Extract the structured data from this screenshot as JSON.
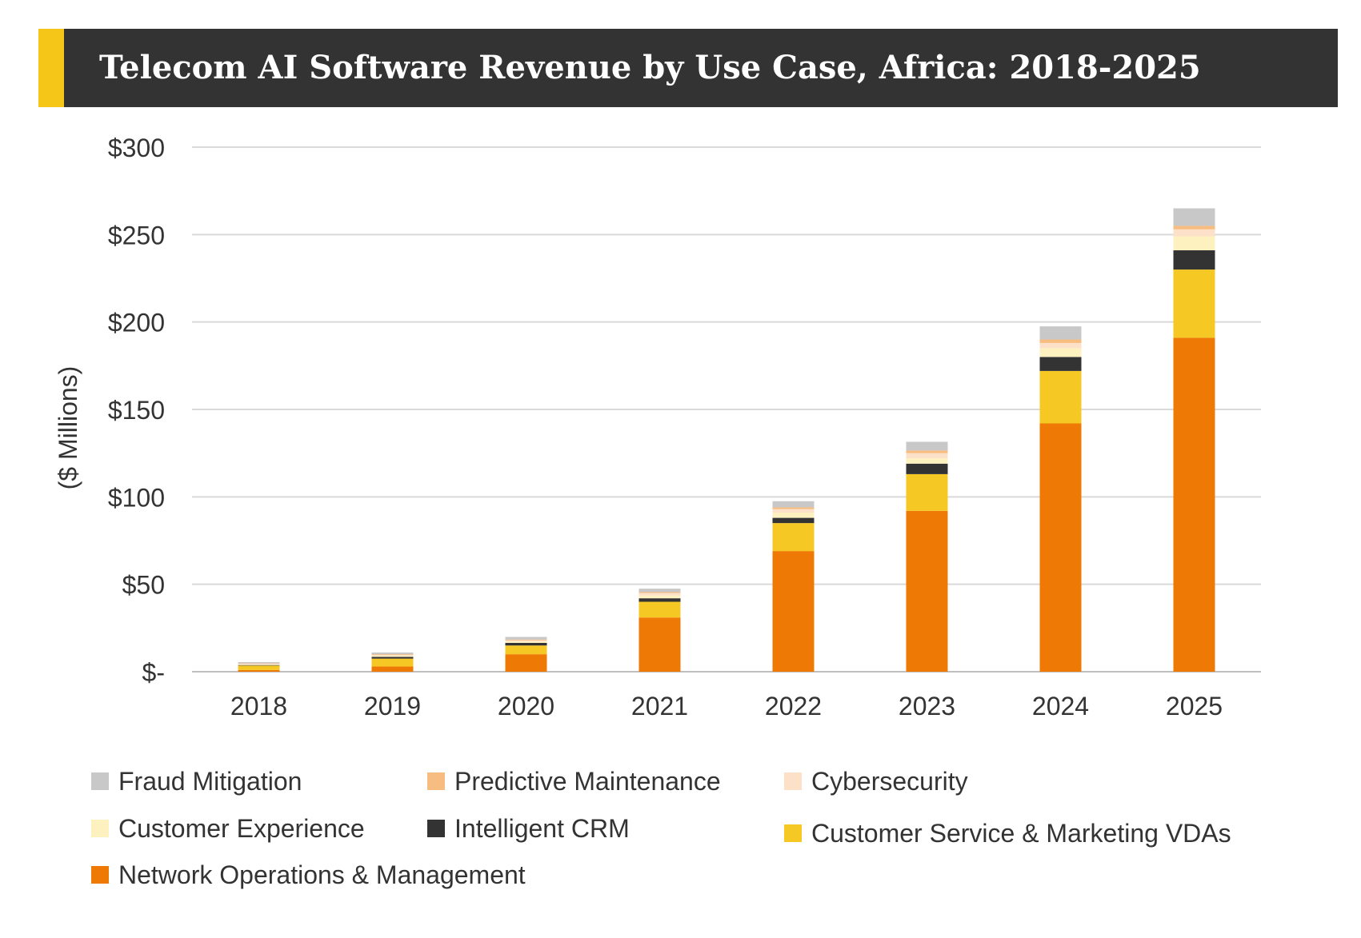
{
  "title": "Telecom AI Software Revenue by Use Case, Africa: 2018-2025",
  "colors": {
    "title_bg": "#333333",
    "title_accent": "#f5c518",
    "title_text": "#ffffff"
  },
  "chart_data": {
    "type": "bar",
    "stacked": true,
    "title": "Telecom AI Software Revenue by Use Case, Africa: 2018-2025",
    "ylabel": "($ Millions)",
    "xlabel": "",
    "ylim": [
      0,
      300
    ],
    "y_ticks": [
      0,
      50,
      100,
      150,
      200,
      250,
      300
    ],
    "y_tick_labels": [
      "$-",
      "$50",
      "$100",
      "$150",
      "$200",
      "$250",
      "$300"
    ],
    "grid": true,
    "legend_position": "bottom",
    "categories": [
      "2018",
      "2019",
      "2020",
      "2021",
      "2022",
      "2023",
      "2024",
      "2025"
    ],
    "series": [
      {
        "name": "Network Operations & Management",
        "color": "#ee7a05",
        "values": [
          1,
          3,
          10,
          31,
          69,
          92,
          142,
          191
        ]
      },
      {
        "name": "Customer Service & Marketing VDAs",
        "color": "#f5c823",
        "values": [
          2.5,
          4.5,
          5,
          9,
          16,
          21,
          30,
          39
        ]
      },
      {
        "name": "Intelligent CRM",
        "color": "#333333",
        "values": [
          0.3,
          1,
          1.5,
          2,
          3,
          6,
          8,
          11
        ]
      },
      {
        "name": "Customer Experience",
        "color": "#fdf1c0",
        "values": [
          0.4,
          0.6,
          0.8,
          1.5,
          3,
          3,
          5,
          8
        ]
      },
      {
        "name": "Cybersecurity",
        "color": "#fde0c8",
        "values": [
          0.4,
          0.5,
          0.6,
          1.5,
          2,
          3,
          3,
          4
        ]
      },
      {
        "name": "Predictive Maintenance",
        "color": "#f7bc80",
        "values": [
          0.2,
          0.4,
          0.5,
          0.5,
          1,
          1.5,
          2,
          2
        ]
      },
      {
        "name": "Fraud Mitigation",
        "color": "#c8c8c8",
        "values": [
          0.7,
          1,
          1.5,
          2,
          3.5,
          5,
          7.5,
          10
        ]
      }
    ]
  },
  "legend": {
    "items": [
      {
        "label": "Fraud Mitigation",
        "color": "#c8c8c8"
      },
      {
        "label": "Predictive Maintenance",
        "color": "#f7bc80"
      },
      {
        "label": "Cybersecurity",
        "color": "#fde0c8"
      },
      {
        "label": "Customer Experience",
        "color": "#fdf1c0"
      },
      {
        "label": "Intelligent CRM",
        "color": "#333333"
      },
      {
        "label": "Customer Service & Marketing VDAs",
        "color": "#f5c823"
      },
      {
        "label": "Network Operations & Management",
        "color": "#ee7a05"
      }
    ]
  }
}
